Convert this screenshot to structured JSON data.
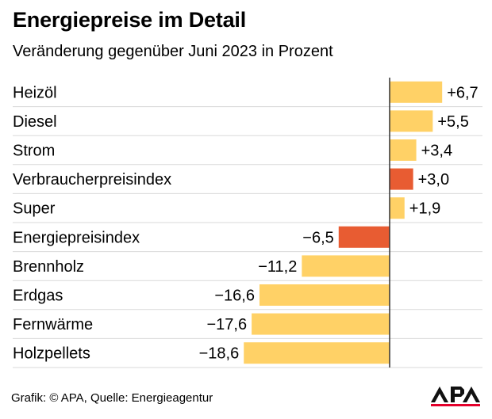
{
  "title": "Energiepreise im Detail",
  "subtitle": "Veränderung gegenüber Juni 2023 in Prozent",
  "footer": "Grafik: © APA, Quelle: Energieagentur",
  "logo_text": "APA",
  "colors": {
    "bar_default": "#FFD166",
    "bar_highlight": "#E85C32",
    "axis": "#333333",
    "separator": "#D9D9D9"
  },
  "chart_data": {
    "type": "bar",
    "orientation": "horizontal",
    "xlim": [
      -18.6,
      6.7
    ],
    "grid": false,
    "categories": [
      "Heizöl",
      "Diesel",
      "Strom",
      "Verbraucherpreisindex",
      "Super",
      "Energiepreisindex",
      "Brennholz",
      "Erdgas",
      "Fernwärme",
      "Holzpellets"
    ],
    "values": [
      6.7,
      5.5,
      3.4,
      3.0,
      1.9,
      -6.5,
      -11.2,
      -16.6,
      -17.6,
      -18.6
    ],
    "value_labels": [
      "+6,7",
      "+5,5",
      "+3,4",
      "+3,0",
      "+1,9",
      "−6,5",
      "−11,2",
      "−16,6",
      "−17,6",
      "−18,6"
    ],
    "highlighted": [
      "Verbraucherpreisindex",
      "Energiepreisindex"
    ]
  }
}
